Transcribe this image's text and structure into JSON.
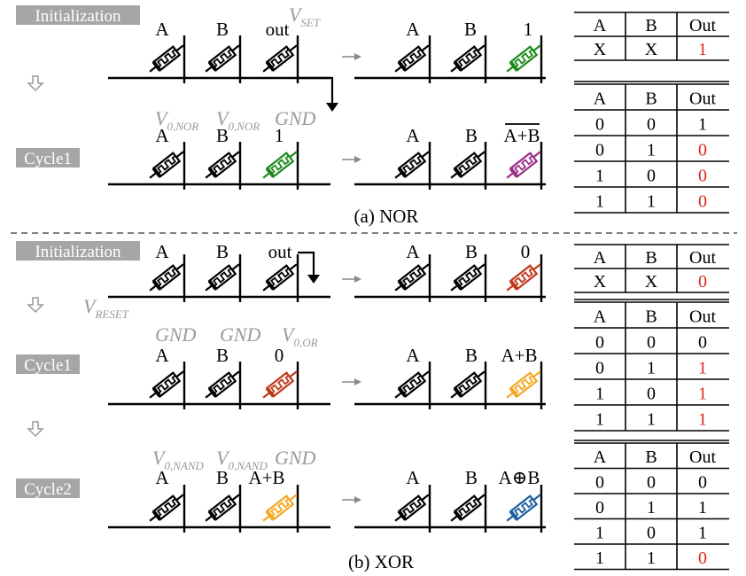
{
  "colors": {
    "black": "#000000",
    "gray": "#a6a6a6",
    "label_gray": "#9a9a9a",
    "green": "#1e8a1e",
    "purple": "#9b2f8a",
    "red": "#c0391b",
    "orange": "#f5a623",
    "blue": "#1f5fa0",
    "out_red": "#e0261a"
  },
  "step_labels": {
    "init1": "Initialization",
    "cycle1_nor": "Cycle1",
    "init2": "Initialization",
    "cycle1_xor": "Cycle1",
    "cycle2_xor": "Cycle2"
  },
  "captions": {
    "nor": "(a) NOR",
    "xor": "(b) XOR"
  },
  "nor": {
    "init": {
      "labels": [
        "A",
        "B",
        "out"
      ],
      "voltage": {
        "main": "V",
        "sub": "SET"
      },
      "result_labels": [
        "A",
        "B",
        "1"
      ]
    },
    "cycle1": {
      "voltages": [
        {
          "main": "V",
          "sub": "0,NOR"
        },
        {
          "main": "V",
          "sub": "0,NOR"
        },
        {
          "main": "GND",
          "sub": ""
        }
      ],
      "labels": [
        "A",
        "B",
        "1"
      ],
      "result_labels": [
        "A",
        "B",
        "A+B"
      ]
    }
  },
  "xor": {
    "init": {
      "labels": [
        "A",
        "B",
        "out"
      ],
      "voltage": {
        "main": "V",
        "sub": "RESET"
      },
      "result_labels": [
        "A",
        "B",
        "0"
      ]
    },
    "cycle1": {
      "voltages": [
        {
          "main": "GND",
          "sub": ""
        },
        {
          "main": "GND",
          "sub": ""
        },
        {
          "main": "V",
          "sub": "0,OR"
        }
      ],
      "labels": [
        "A",
        "B",
        "0"
      ],
      "result_labels": [
        "A",
        "B",
        "A+B"
      ]
    },
    "cycle2": {
      "voltages": [
        {
          "main": "V",
          "sub": "0,NAND"
        },
        {
          "main": "V",
          "sub": "0,NAND"
        },
        {
          "main": "GND",
          "sub": ""
        }
      ],
      "labels": [
        "A",
        "B",
        "A+B"
      ],
      "result_labels": [
        "A",
        "B",
        "A⊕B"
      ]
    }
  },
  "tables": {
    "nor_init": {
      "headers": [
        "A",
        "B",
        "Out"
      ],
      "rows": [
        [
          "X",
          "X",
          "1"
        ]
      ],
      "red_out": [
        true
      ]
    },
    "nor_truth": {
      "headers": [
        "A",
        "B",
        "Out"
      ],
      "rows": [
        [
          "0",
          "0",
          "1"
        ],
        [
          "0",
          "1",
          "0"
        ],
        [
          "1",
          "0",
          "0"
        ],
        [
          "1",
          "1",
          "0"
        ]
      ],
      "red_out": [
        false,
        true,
        true,
        true
      ]
    },
    "xor_init": {
      "headers": [
        "A",
        "B",
        "Out"
      ],
      "rows": [
        [
          "X",
          "X",
          "0"
        ]
      ],
      "red_out": [
        true
      ]
    },
    "xor_or": {
      "headers": [
        "A",
        "B",
        "Out"
      ],
      "rows": [
        [
          "0",
          "0",
          "0"
        ],
        [
          "0",
          "1",
          "1"
        ],
        [
          "1",
          "0",
          "1"
        ],
        [
          "1",
          "1",
          "1"
        ]
      ],
      "red_out": [
        false,
        true,
        true,
        true
      ]
    },
    "xor_truth": {
      "headers": [
        "A",
        "B",
        "Out"
      ],
      "rows": [
        [
          "0",
          "0",
          "0"
        ],
        [
          "0",
          "1",
          "1"
        ],
        [
          "1",
          "0",
          "1"
        ],
        [
          "1",
          "1",
          "0"
        ]
      ],
      "red_out": [
        false,
        false,
        false,
        true
      ]
    }
  }
}
